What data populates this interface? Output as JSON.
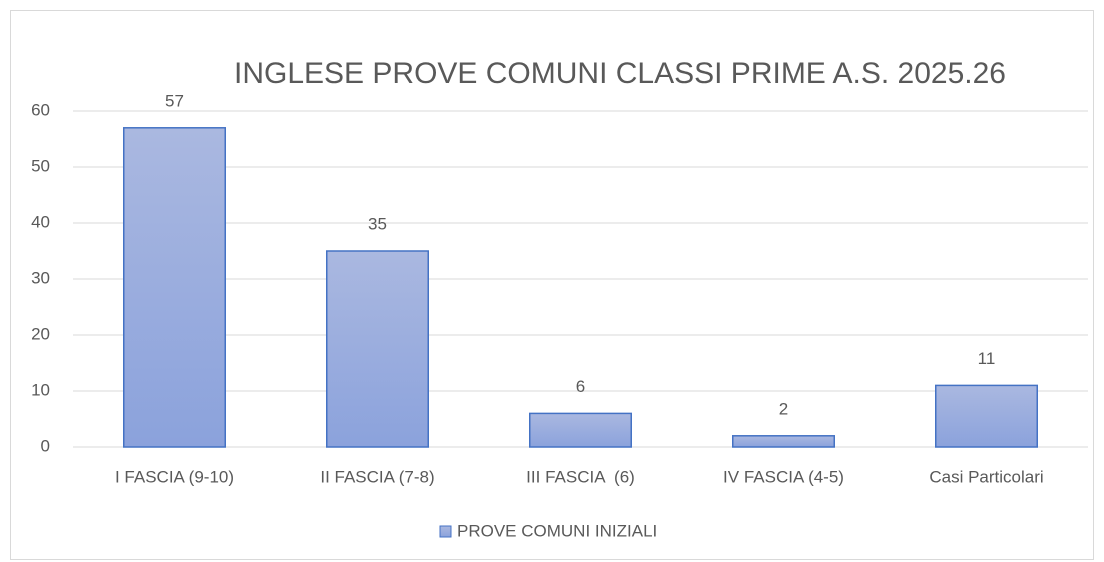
{
  "chart_data": {
    "type": "bar",
    "title": "INGLESE PROVE COMUNI CLASSI PRIME A.S. 2025.26",
    "categories": [
      "I FASCIA (9-10)",
      "II FASCIA (7-8)",
      "III FASCIA  (6)",
      "IV FASCIA (4-5)",
      "Casi Particolari"
    ],
    "series": [
      {
        "name": "PROVE COMUNI INIZIALI",
        "color": "#4472c4",
        "values": [
          57,
          35,
          6,
          2,
          11
        ]
      }
    ],
    "ylim": [
      0,
      60
    ],
    "yticks": [
      0,
      10,
      20,
      30,
      40,
      50,
      60
    ],
    "grid": true,
    "legend": "bottom"
  }
}
